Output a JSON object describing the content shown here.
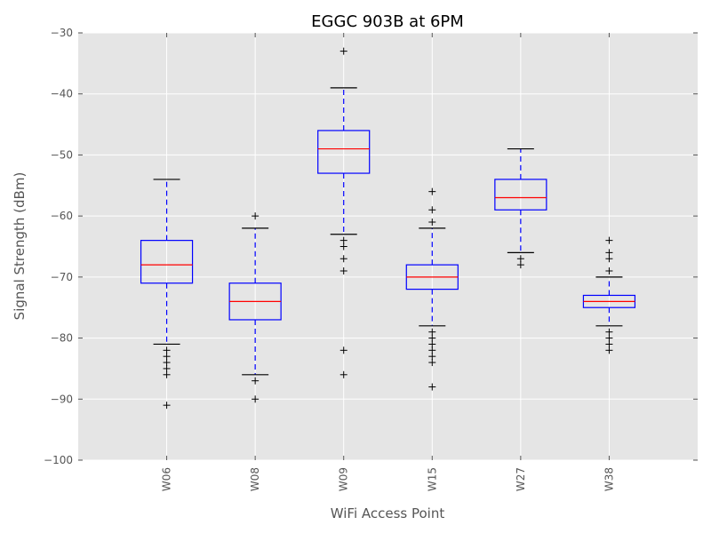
{
  "chart_data": {
    "type": "box",
    "title": "EGGC 903B at 6PM",
    "xlabel": "WiFi Access Point",
    "ylabel": "Signal Strength (dBm)",
    "ylim": [
      -100,
      -30
    ],
    "yticks": [
      -100,
      -90,
      -80,
      -70,
      -60,
      -50,
      -40,
      -30
    ],
    "ytick_labels": [
      "−100",
      "−90",
      "−80",
      "−70",
      "−60",
      "−50",
      "−40",
      "−30"
    ],
    "grid": true,
    "categories": [
      "W06",
      "W08",
      "W09",
      "W15",
      "W27",
      "W38"
    ],
    "boxes": [
      {
        "name": "W06",
        "whisker_low": -81,
        "q1": -71,
        "median": -68,
        "q3": -64,
        "whisker_high": -54,
        "outliers": [
          -82,
          -83,
          -84,
          -85,
          -86,
          -91
        ]
      },
      {
        "name": "W08",
        "whisker_low": -86,
        "q1": -77,
        "median": -74,
        "q3": -71,
        "whisker_high": -62,
        "outliers": [
          -60,
          -87,
          -90
        ]
      },
      {
        "name": "W09",
        "whisker_low": -63,
        "q1": -53,
        "median": -49,
        "q3": -46,
        "whisker_high": -39,
        "outliers": [
          -33,
          -64,
          -65,
          -67,
          -69,
          -82,
          -86
        ]
      },
      {
        "name": "W15",
        "whisker_low": -78,
        "q1": -72,
        "median": -70,
        "q3": -68,
        "whisker_high": -62,
        "outliers": [
          -56,
          -59,
          -61,
          -79,
          -80,
          -81,
          -82,
          -83,
          -84,
          -88
        ]
      },
      {
        "name": "W27",
        "whisker_low": -66,
        "q1": -59,
        "median": -57,
        "q3": -54,
        "whisker_high": -49,
        "outliers": [
          -67,
          -68
        ]
      },
      {
        "name": "W38",
        "whisker_low": -78,
        "q1": -75,
        "median": -74,
        "q3": -73,
        "whisker_high": -70,
        "outliers": [
          -64,
          -66,
          -67,
          -69,
          -79,
          -80,
          -81,
          -82
        ]
      }
    ],
    "colors": {
      "box": "#0000ff",
      "median": "#ff0000",
      "whisker": "#0000ff",
      "cap": "#000000",
      "outlier": "#000000",
      "plot_background": "#e5e5e5",
      "grid": "#ffffff"
    }
  }
}
